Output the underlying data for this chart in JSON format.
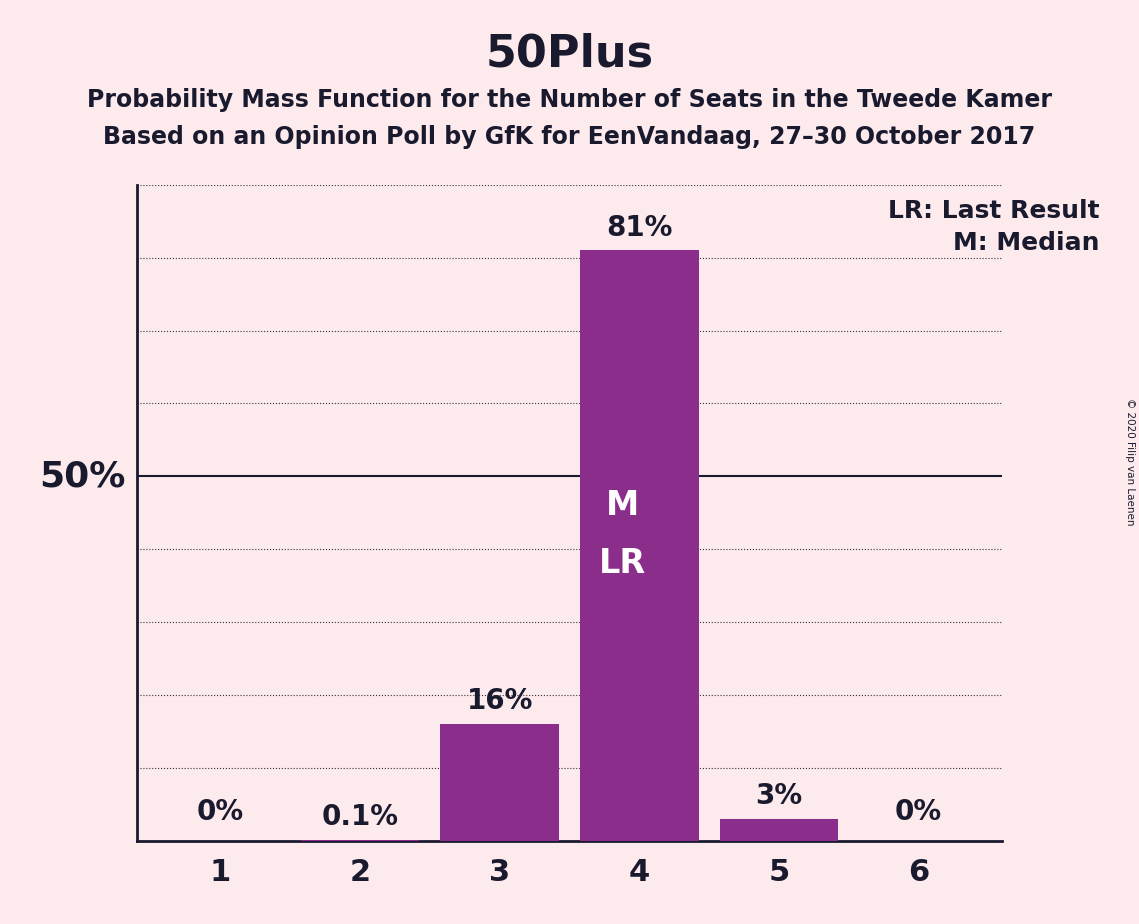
{
  "title": "50Plus",
  "subtitle1": "Probability Mass Function for the Number of Seats in the Tweede Kamer",
  "subtitle2": "Based on an Opinion Poll by GfK for EenVandaag, 27–30 October 2017",
  "copyright": "© 2020 Filip van Laenen",
  "categories": [
    1,
    2,
    3,
    4,
    5,
    6
  ],
  "values": [
    0.0,
    0.1,
    16.0,
    81.0,
    3.0,
    0.0
  ],
  "bar_color": "#8B2D8B",
  "background_color": "#FDEAED",
  "text_color": "#1a1a2e",
  "bar_labels": [
    "0%",
    "0.1%",
    "16%",
    "81%",
    "3%",
    "0%"
  ],
  "median_bar": 4,
  "lr_bar": 4,
  "ylim": [
    0,
    90
  ],
  "yticks": [
    10,
    20,
    30,
    40,
    50,
    60,
    70,
    80,
    90
  ],
  "ylabel_50_pct": "50%",
  "lr_label": "LR: Last Result",
  "m_label": "M: Median",
  "inside_labels_m": "M",
  "inside_labels_lr": "LR",
  "title_fontsize": 32,
  "subtitle_fontsize": 17,
  "axis_tick_fontsize": 22,
  "bar_label_fontsize": 20,
  "inside_label_fontsize": 24,
  "legend_fontsize": 18,
  "ylabel_fontsize": 26
}
